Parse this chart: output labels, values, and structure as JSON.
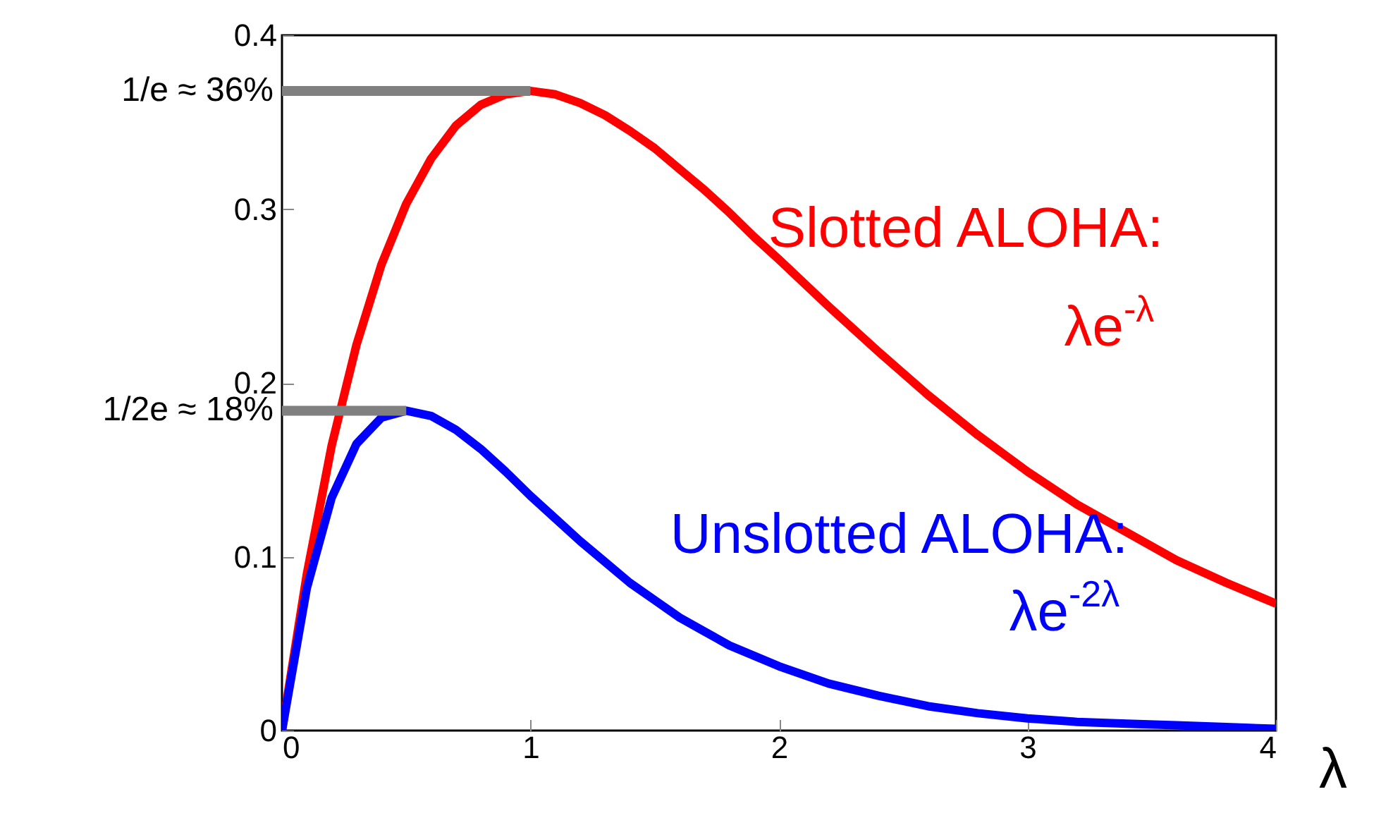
{
  "chart_data": {
    "type": "line",
    "xlabel": "λ",
    "x": [
      0,
      0.1,
      0.2,
      0.3,
      0.4,
      0.5,
      0.6,
      0.7,
      0.8,
      0.9,
      1.0,
      1.1,
      1.2,
      1.3,
      1.4,
      1.5,
      1.6,
      1.7,
      1.8,
      1.9,
      2.0,
      2.2,
      2.4,
      2.6,
      2.8,
      3.0,
      3.2,
      3.4,
      3.6,
      3.8,
      4.0
    ],
    "series": [
      {
        "name": "Slotted ALOHA:\nλe$^{-λ}$",
        "color": "#ff0000",
        "values": [
          0,
          0.09,
          0.164,
          0.222,
          0.268,
          0.303,
          0.329,
          0.348,
          0.36,
          0.366,
          0.368,
          0.366,
          0.361,
          0.354,
          0.345,
          0.335,
          0.323,
          0.311,
          0.298,
          0.284,
          0.271,
          0.244,
          0.218,
          0.193,
          0.17,
          0.149,
          0.13,
          0.114,
          0.098,
          0.085,
          0.073
        ]
      },
      {
        "name": "Unslotted ALOHA:\nλe$^{-2λ}$",
        "color": "#0000ff",
        "values": [
          0,
          0.082,
          0.134,
          0.165,
          0.18,
          0.184,
          0.181,
          0.173,
          0.162,
          0.149,
          0.135,
          0.122,
          0.109,
          0.097,
          0.085,
          0.075,
          0.065,
          0.057,
          0.049,
          0.043,
          0.037,
          0.027,
          0.02,
          0.014,
          0.01,
          0.007,
          0.005,
          0.004,
          0.003,
          0.002,
          0.001
        ]
      }
    ],
    "annotations": [
      {
        "text": "1/e ≈ 36%",
        "x": 1,
        "y": 0.368
      },
      {
        "text": "1/2e ≈ 18%",
        "x": 0.5,
        "y": 0.184
      }
    ],
    "xlim": [
      0,
      4
    ],
    "xticks": [
      0,
      1,
      2,
      3,
      4
    ],
    "ylim": [
      0,
      0.4
    ],
    "yticks": [
      0,
      0.1,
      0.2,
      0.3,
      0.4
    ],
    "grid": false
  }
}
